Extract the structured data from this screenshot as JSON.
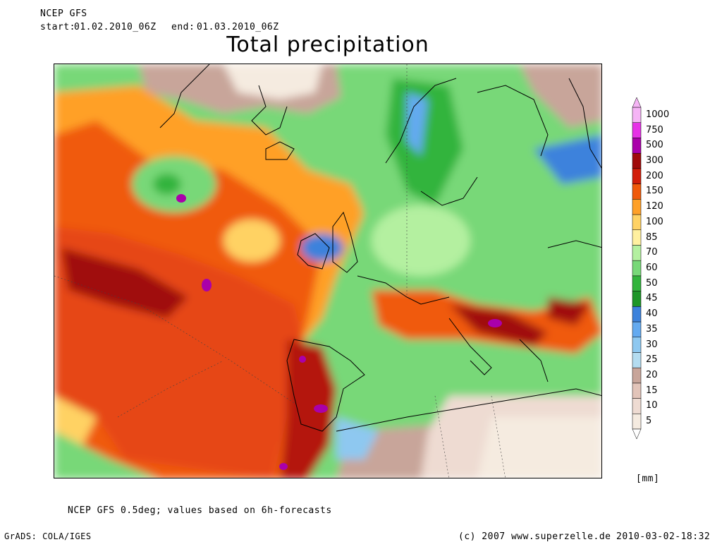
{
  "header": {
    "model": "NCEP GFS",
    "start_label": "start:",
    "start": "01.02.2010_06Z",
    "end_label": "end:",
    "end": "01.03.2010_06Z",
    "title": "Total precipitation"
  },
  "legend": {
    "unit": "[mm]",
    "levels": [
      "5",
      "10",
      "15",
      "20",
      "25",
      "30",
      "35",
      "40",
      "45",
      "50",
      "60",
      "70",
      "85",
      "100",
      "120",
      "150",
      "200",
      "300",
      "500",
      "750",
      "1000"
    ],
    "colors": [
      "#f5ebe0",
      "#eedbd2",
      "#e2c4b9",
      "#c8a59a",
      "#b4dcf0",
      "#8ec8f0",
      "#64aaf0",
      "#3c82dc",
      "#1e9628",
      "#32b43c",
      "#78d878",
      "#b4f0a0",
      "#fff0a0",
      "#ffd264",
      "#ffa028",
      "#f05a0a",
      "#d21e0a",
      "#a00a0a",
      "#aa00aa",
      "#e632e6",
      "#f5b4f5"
    ]
  },
  "map": {
    "description_colors": {
      "ocean_wet": "#e64614",
      "heavy": "#b4140a",
      "moderate": "#ffa028",
      "light": "#78d878",
      "dry": "#c8a59a"
    }
  },
  "footer": {
    "note": "NCEP GFS 0.5deg; values based on 6h-forecasts",
    "software": "GrADS: COLA/IGES",
    "copyright": "(c) 2007 www.superzelle.de",
    "timestamp": "2010-03-02-18:32"
  }
}
